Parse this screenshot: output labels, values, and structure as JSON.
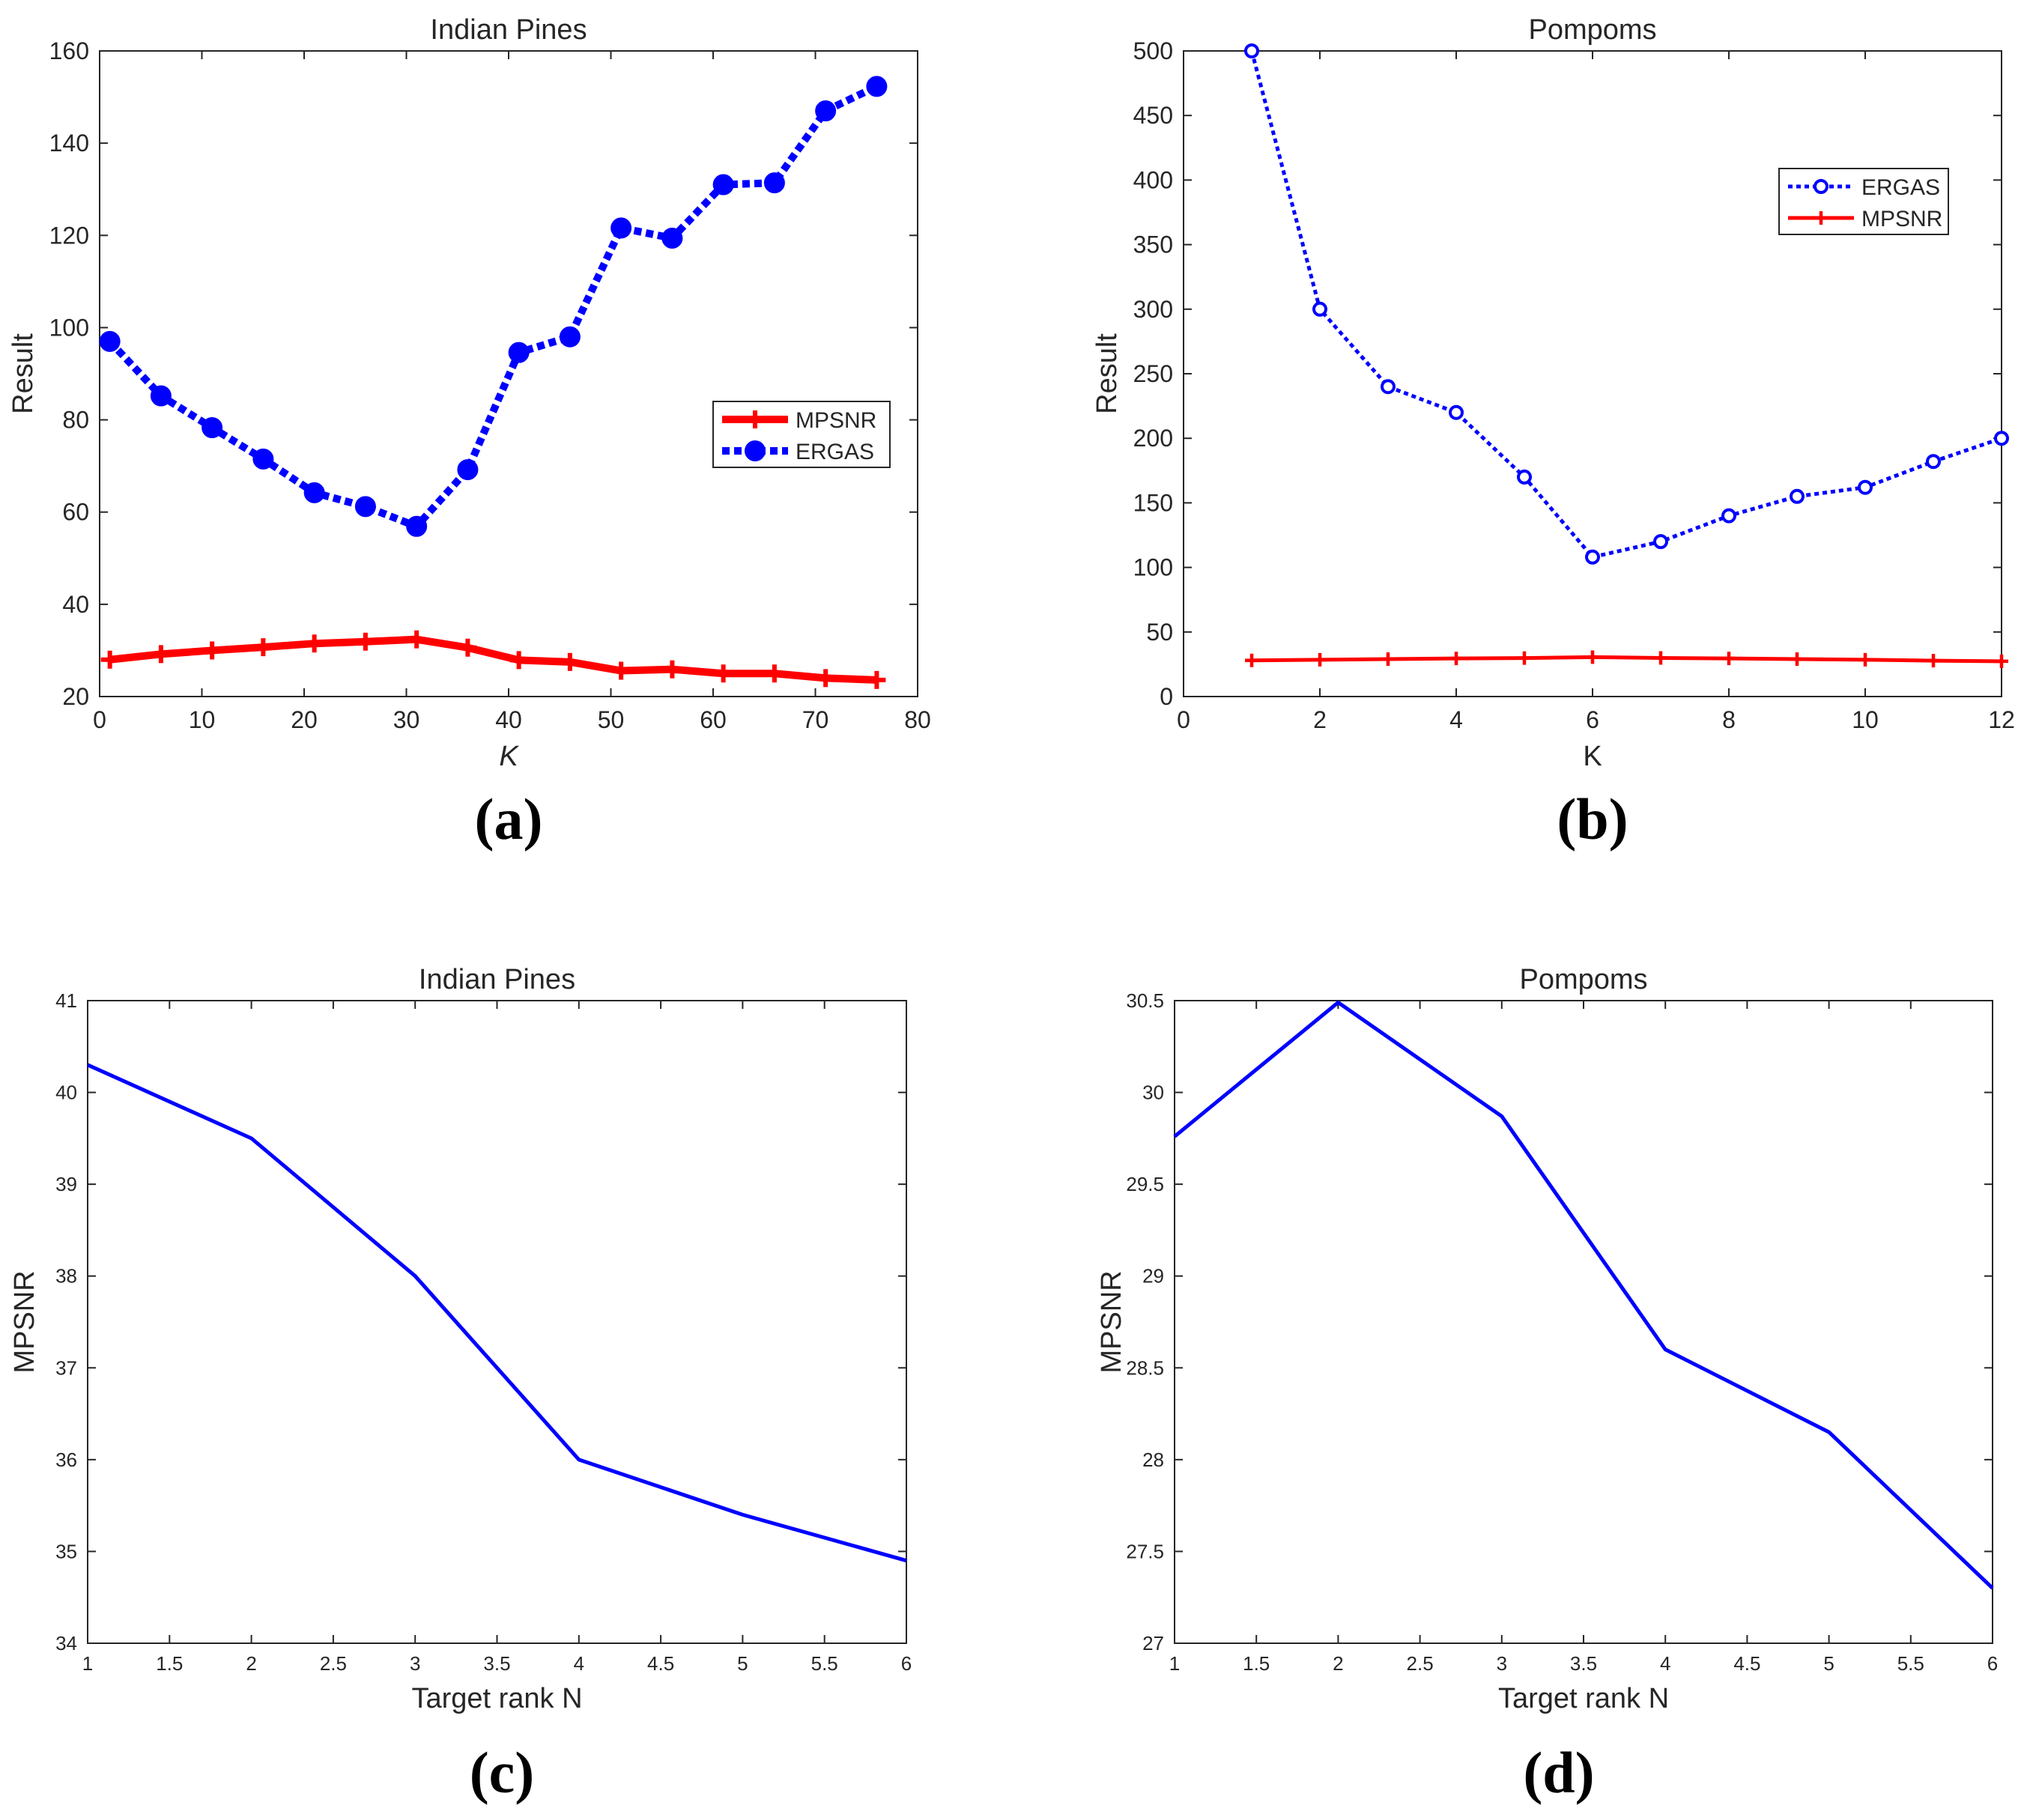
{
  "chart_data": [
    {
      "id": "a",
      "panel_label": "(a)",
      "type": "line",
      "title": "Indian Pines",
      "xlabel": "K",
      "xlabel_italic": true,
      "ylabel": "Result",
      "xlim": [
        0,
        80
      ],
      "ylim": [
        20,
        160
      ],
      "xticks": [
        0,
        10,
        20,
        30,
        40,
        50,
        60,
        70,
        80
      ],
      "yticks": [
        20,
        40,
        60,
        80,
        100,
        120,
        140,
        160
      ],
      "xtick_labels": [
        "0",
        "10",
        "20",
        "30",
        "40",
        "50",
        "60",
        "70",
        "80"
      ],
      "ytick_labels": [
        "20",
        "40",
        "60",
        "80",
        "100",
        "120",
        "140",
        "160"
      ],
      "legend_position": "middle-right",
      "series": [
        {
          "name": "MPSNR",
          "color": "#ff0000",
          "style": "solid",
          "marker": "plus",
          "weight": "thick",
          "x": [
            1,
            6,
            11,
            16,
            21,
            26,
            31,
            36,
            41,
            46,
            51,
            56,
            61,
            66,
            71,
            76
          ],
          "y": [
            28,
            29.2,
            30,
            30.7,
            31.5,
            31.9,
            32.4,
            30.6,
            27.9,
            27.5,
            25.6,
            25.9,
            25,
            25,
            24,
            23.6
          ]
        },
        {
          "name": "ERGAS",
          "color": "#0000ff",
          "style": "dotted",
          "marker": "filled-circle",
          "weight": "thick",
          "x": [
            1,
            6,
            11,
            16,
            21,
            26,
            31,
            36,
            41,
            46,
            51,
            56,
            61,
            66,
            71,
            76
          ],
          "y": [
            97,
            85.2,
            78.3,
            71.5,
            64.2,
            61.2,
            56.9,
            69.2,
            94.6,
            98,
            121.6,
            119.4,
            131,
            131.4,
            147,
            152.3
          ]
        }
      ]
    },
    {
      "id": "b",
      "panel_label": "(b)",
      "type": "line",
      "title": "Pompoms",
      "xlabel": "K",
      "xlabel_italic": false,
      "ylabel": "Result",
      "xlim": [
        0,
        12
      ],
      "ylim": [
        0,
        500
      ],
      "xticks": [
        0,
        2,
        4,
        6,
        8,
        10,
        12
      ],
      "yticks": [
        0,
        50,
        100,
        150,
        200,
        250,
        300,
        350,
        400,
        450,
        500
      ],
      "xtick_labels": [
        "0",
        "2",
        "4",
        "6",
        "8",
        "10",
        "12"
      ],
      "ytick_labels": [
        "0",
        "50",
        "100",
        "150",
        "200",
        "250",
        "300",
        "350",
        "400",
        "450",
        "500"
      ],
      "legend_position": "upper-right",
      "series": [
        {
          "name": "ERGAS",
          "color": "#0000ff",
          "style": "dotted",
          "marker": "open-circle",
          "weight": "normal",
          "x": [
            1,
            2,
            3,
            4,
            5,
            6,
            7,
            8,
            9,
            10,
            11,
            12
          ],
          "y": [
            500,
            300,
            240,
            220,
            170,
            108,
            120,
            140,
            155,
            162,
            182,
            200
          ]
        },
        {
          "name": "MPSNR",
          "color": "#ff0000",
          "style": "solid",
          "marker": "plus",
          "weight": "normal",
          "x": [
            1,
            2,
            3,
            4,
            5,
            6,
            7,
            8,
            9,
            10,
            11,
            12
          ],
          "y": [
            28,
            28.5,
            29,
            29.5,
            29.8,
            30.5,
            29.9,
            29.5,
            29,
            28.5,
            27.8,
            27.3
          ]
        }
      ]
    },
    {
      "id": "c",
      "panel_label": "(c)",
      "type": "line",
      "title": "Indian Pines",
      "xlabel": "Target rank N",
      "xlabel_italic": false,
      "ylabel": "MPSNR",
      "xlim": [
        1,
        6
      ],
      "ylim": [
        34,
        41
      ],
      "xticks": [
        1,
        1.5,
        2,
        2.5,
        3,
        3.5,
        4,
        4.5,
        5,
        5.5,
        6
      ],
      "yticks": [
        34,
        35,
        36,
        37,
        38,
        39,
        40,
        41
      ],
      "xtick_labels": [
        "1",
        "1.5",
        "2",
        "2.5",
        "3",
        "3.5",
        "4",
        "4.5",
        "5",
        "5.5",
        "6"
      ],
      "ytick_labels": [
        "34",
        "35",
        "36",
        "37",
        "38",
        "39",
        "40",
        "41"
      ],
      "series": [
        {
          "name": "MPSNR",
          "color": "#0000ff",
          "style": "solid",
          "marker": "none",
          "weight": "normal",
          "x": [
            1,
            2,
            3,
            4,
            5,
            6
          ],
          "y": [
            40.3,
            39.5,
            38,
            36,
            35.4,
            34.9
          ]
        }
      ]
    },
    {
      "id": "d",
      "panel_label": "(d)",
      "type": "line",
      "title": "Pompoms",
      "xlabel": "Target rank N",
      "xlabel_italic": false,
      "ylabel": "MPSNR",
      "xlim": [
        1,
        6
      ],
      "ylim": [
        27,
        30.5
      ],
      "xticks": [
        1,
        1.5,
        2,
        2.5,
        3,
        3.5,
        4,
        4.5,
        5,
        5.5,
        6
      ],
      "yticks": [
        27,
        27.5,
        28,
        28.5,
        29,
        29.5,
        30,
        30.5
      ],
      "xtick_labels": [
        "1",
        "1.5",
        "2",
        "2.5",
        "3",
        "3.5",
        "4",
        "4.5",
        "5",
        "5.5",
        "6"
      ],
      "ytick_labels": [
        "27",
        "27.5",
        "28",
        "28.5",
        "29",
        "29.5",
        "30",
        "30.5"
      ],
      "series": [
        {
          "name": "MPSNR",
          "color": "#0000ff",
          "style": "solid",
          "marker": "none",
          "weight": "normal",
          "x": [
            1,
            2,
            3,
            4,
            5,
            6
          ],
          "y": [
            29.76,
            30.49,
            29.87,
            28.6,
            28.15,
            27.3
          ]
        }
      ]
    }
  ]
}
